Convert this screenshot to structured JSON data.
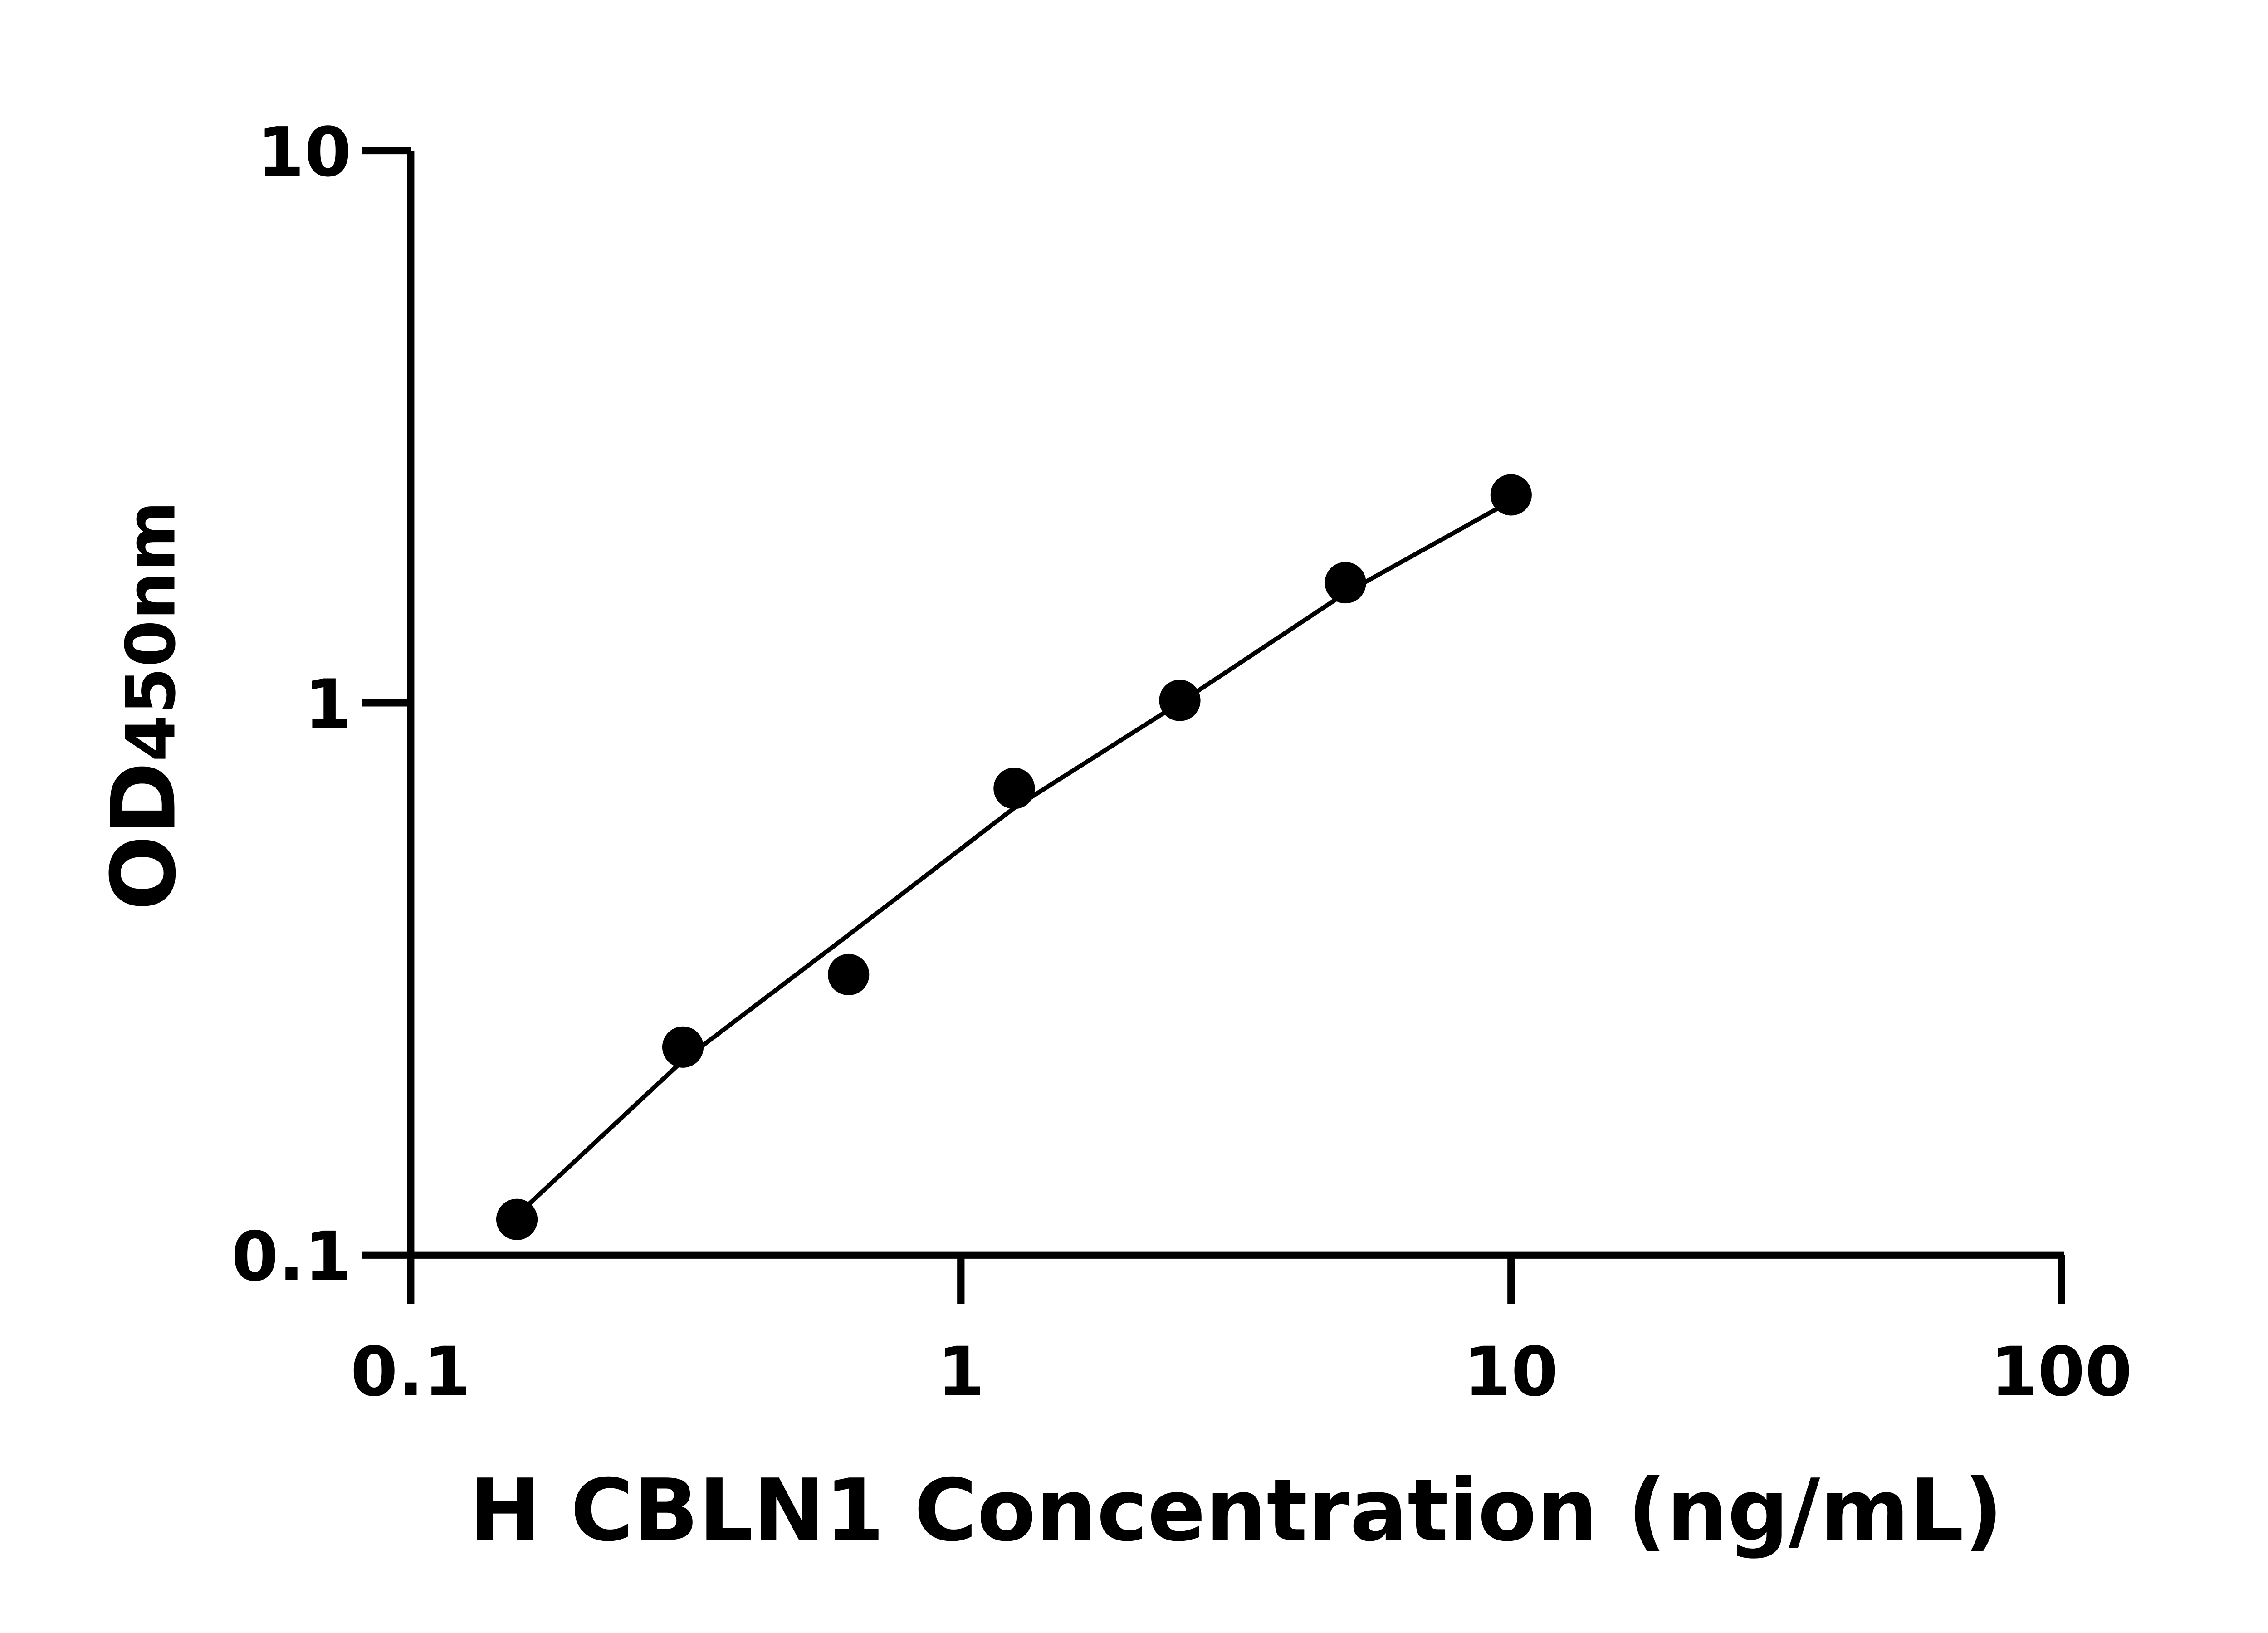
{
  "chart_data": {
    "type": "scatter",
    "title": "",
    "xlabel": "H CBLN1 Concentration (ng/mL)",
    "ylabel_main": "OD",
    "ylabel_sub": "450nm",
    "x_scale": "log",
    "y_scale": "log",
    "xlim": [
      0.1,
      100
    ],
    "ylim": [
      0.1,
      10
    ],
    "x_ticks": [
      0.1,
      1,
      10,
      100
    ],
    "x_tick_labels": [
      "0.1",
      "1",
      "10",
      "100"
    ],
    "y_ticks": [
      0.1,
      1,
      10
    ],
    "y_tick_labels": [
      "0.1",
      "1",
      "10"
    ],
    "grid": false,
    "legend": "none",
    "points": {
      "x": [
        0.156,
        0.3125,
        0.625,
        1.25,
        2.5,
        5,
        10
      ],
      "y": [
        0.116,
        0.238,
        0.322,
        0.7,
        1.01,
        1.65,
        2.38
      ]
    },
    "fit_curve": {
      "x": [
        0.156,
        0.3125,
        0.625,
        1.25,
        2.5,
        5,
        10
      ],
      "y": [
        0.118,
        0.225,
        0.38,
        0.645,
        1.0,
        1.58,
        2.32
      ]
    },
    "colors": {
      "points": "#000000",
      "line": "#000000",
      "axes": "#000000"
    }
  }
}
